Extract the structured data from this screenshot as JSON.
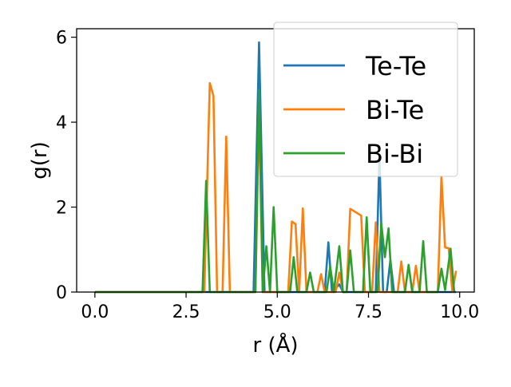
{
  "chart_data": {
    "type": "line",
    "title": "",
    "xlabel": "r (Å)",
    "ylabel": "g(r)",
    "xlim": [
      -0.5,
      10.4
    ],
    "ylim": [
      0,
      6.2
    ],
    "xticks": [
      0.0,
      2.5,
      5.0,
      7.5,
      10.0
    ],
    "xtick_labels": [
      "0.0",
      "2.5",
      "5.0",
      "7.5",
      "10.0"
    ],
    "yticks": [
      0,
      2,
      4,
      6
    ],
    "ytick_labels": [
      "0",
      "2",
      "4",
      "6"
    ],
    "legend_position": "top-right",
    "grid": false,
    "series": [
      {
        "name": "Te-Te",
        "color": "#1f77b4",
        "points": [
          [
            0.0,
            0
          ],
          [
            4.35,
            0
          ],
          [
            4.5,
            5.88
          ],
          [
            4.65,
            0
          ],
          [
            6.3,
            0
          ],
          [
            6.4,
            1.17
          ],
          [
            6.5,
            0
          ],
          [
            6.7,
            0.18
          ],
          [
            6.8,
            0
          ],
          [
            7.7,
            0
          ],
          [
            7.8,
            3.2
          ],
          [
            7.9,
            0
          ],
          [
            8.0,
            0
          ],
          [
            8.1,
            0.75
          ],
          [
            8.2,
            0
          ],
          [
            9.9,
            0
          ]
        ]
      },
      {
        "name": "Bi-Te",
        "color": "#ff7f0e",
        "points": [
          [
            0.0,
            0
          ],
          [
            3.0,
            0
          ],
          [
            3.15,
            4.92
          ],
          [
            3.25,
            4.62
          ],
          [
            3.35,
            0
          ],
          [
            3.5,
            0
          ],
          [
            3.6,
            3.66
          ],
          [
            3.7,
            0
          ],
          [
            4.4,
            0
          ],
          [
            4.5,
            4.35
          ],
          [
            4.6,
            0
          ],
          [
            5.3,
            0
          ],
          [
            5.4,
            1.66
          ],
          [
            5.5,
            1.6
          ],
          [
            5.6,
            0
          ],
          [
            5.7,
            1.97
          ],
          [
            5.8,
            0
          ],
          [
            6.1,
            0
          ],
          [
            6.2,
            0.42
          ],
          [
            6.3,
            0
          ],
          [
            6.6,
            0
          ],
          [
            6.7,
            0.46
          ],
          [
            6.8,
            0
          ],
          [
            6.9,
            0
          ],
          [
            7.0,
            1.96
          ],
          [
            7.3,
            1.8
          ],
          [
            7.4,
            0
          ],
          [
            7.6,
            0
          ],
          [
            7.7,
            1.64
          ],
          [
            7.8,
            0
          ],
          [
            8.3,
            0
          ],
          [
            8.4,
            0.72
          ],
          [
            8.5,
            0
          ],
          [
            8.7,
            0
          ],
          [
            8.8,
            0.62
          ],
          [
            8.9,
            0
          ],
          [
            9.4,
            0
          ],
          [
            9.5,
            2.72
          ],
          [
            9.6,
            1.05
          ],
          [
            9.7,
            1.03
          ],
          [
            9.8,
            0
          ],
          [
            9.9,
            0.5
          ]
        ]
      },
      {
        "name": "Bi-Bi",
        "color": "#2ca02c",
        "points": [
          [
            0.0,
            0
          ],
          [
            2.95,
            0
          ],
          [
            3.05,
            2.62
          ],
          [
            3.15,
            0
          ],
          [
            4.4,
            0
          ],
          [
            4.5,
            4.76
          ],
          [
            4.6,
            0
          ],
          [
            4.7,
            1.08
          ],
          [
            4.8,
            0
          ],
          [
            4.9,
            2.0
          ],
          [
            5.0,
            0
          ],
          [
            5.35,
            0
          ],
          [
            5.45,
            0.82
          ],
          [
            5.55,
            0
          ],
          [
            5.8,
            0
          ],
          [
            5.9,
            0.46
          ],
          [
            6.0,
            0
          ],
          [
            6.35,
            0
          ],
          [
            6.45,
            0.6
          ],
          [
            6.55,
            0
          ],
          [
            6.7,
            1.08
          ],
          [
            6.8,
            0
          ],
          [
            6.9,
            0
          ],
          [
            7.0,
            0.98
          ],
          [
            7.1,
            0
          ],
          [
            7.35,
            0
          ],
          [
            7.45,
            1.76
          ],
          [
            7.55,
            0
          ],
          [
            7.75,
            0
          ],
          [
            7.85,
            1.62
          ],
          [
            7.95,
            0.82
          ],
          [
            8.05,
            1.5
          ],
          [
            8.15,
            0
          ],
          [
            8.5,
            0
          ],
          [
            8.6,
            0.64
          ],
          [
            8.7,
            0
          ],
          [
            8.9,
            0
          ],
          [
            9.0,
            1.2
          ],
          [
            9.1,
            0
          ],
          [
            9.4,
            0
          ],
          [
            9.5,
            0.55
          ],
          [
            9.6,
            0.05
          ],
          [
            9.75,
            1.02
          ],
          [
            9.85,
            0
          ]
        ]
      }
    ]
  }
}
